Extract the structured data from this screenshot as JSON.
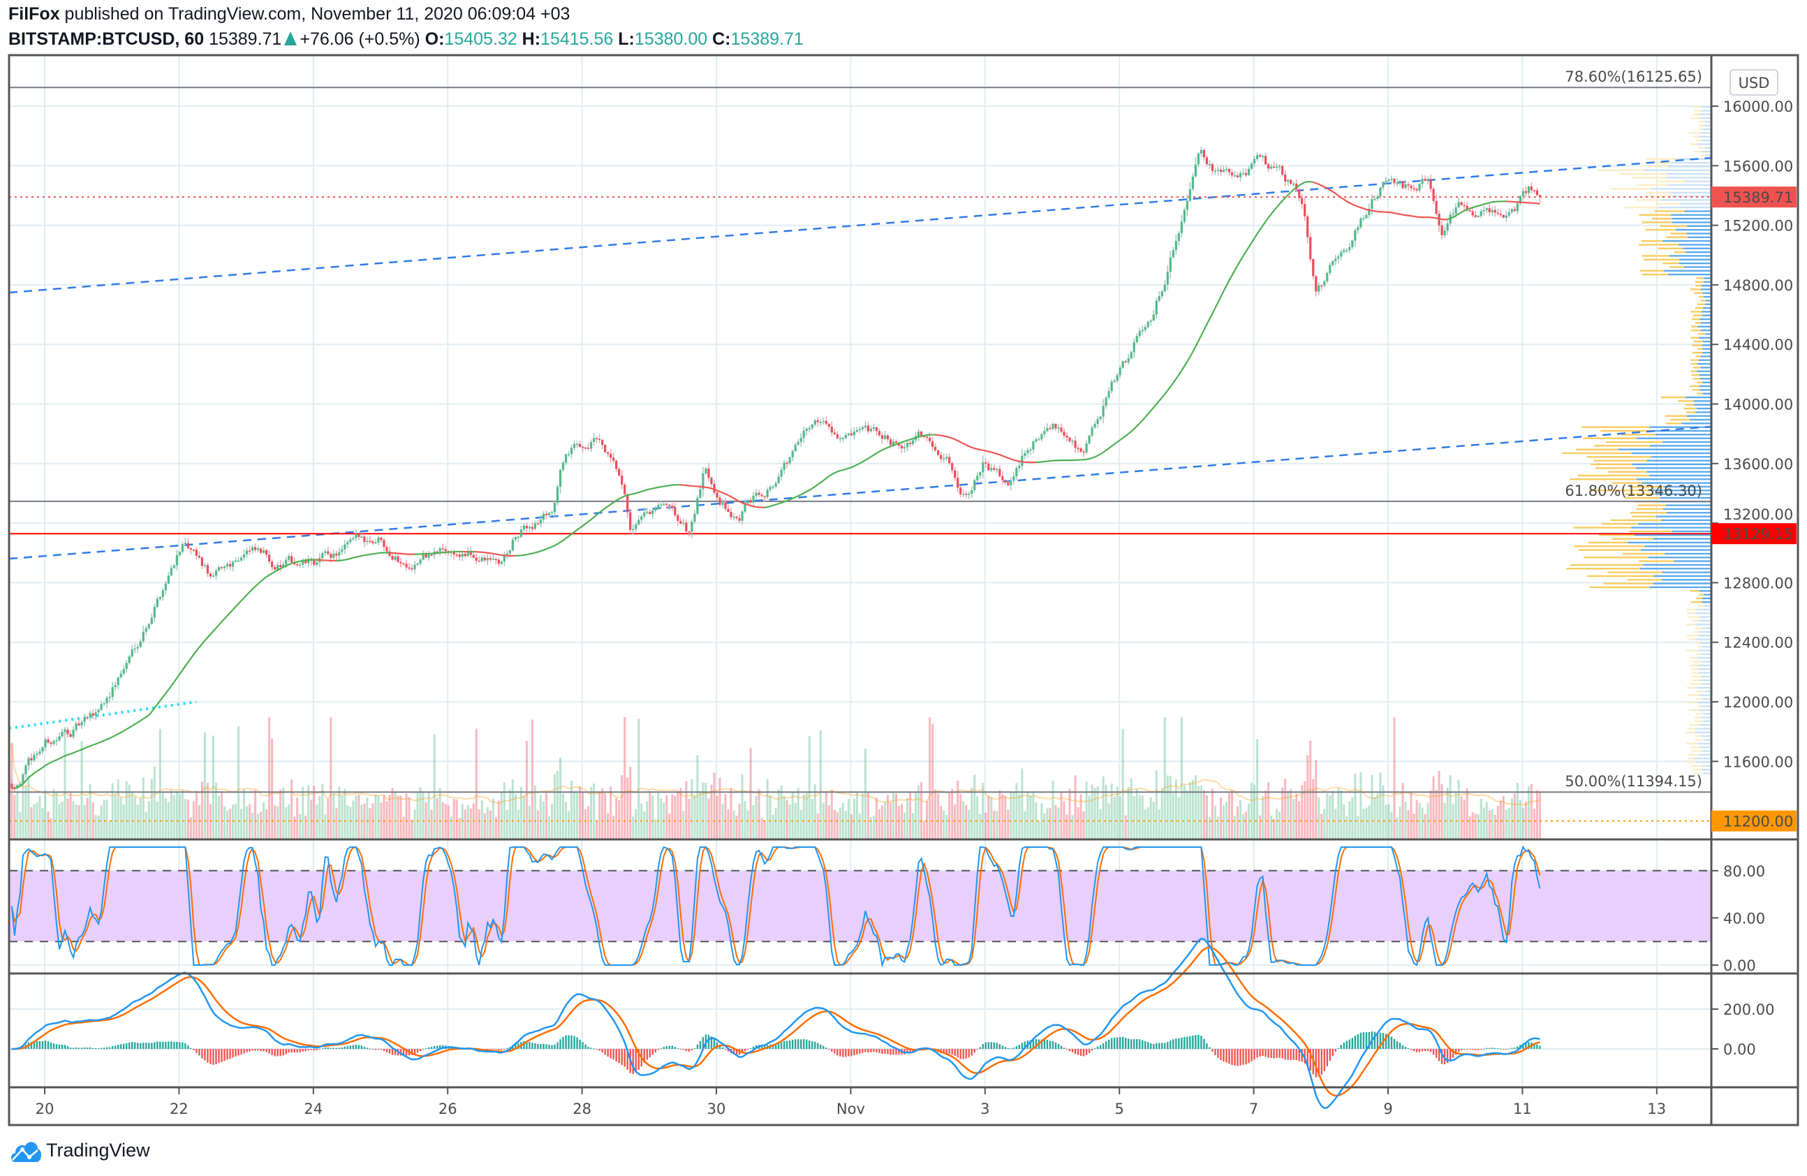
{
  "header": {
    "author": "FilFox",
    "published": " published on TradingView.com, November 11, 2020 06:09:04 +03",
    "symbol": "BITSTAMP:BTCUSD, 60",
    "last": "15389.71",
    "change": "+76.06 (+0.5%)",
    "o_label": "O:",
    "o": "15405.32",
    "h_label": "H:",
    "h": "15415.56",
    "l_label": "L:",
    "l": "15380.00",
    "c_label": "C:",
    "c": "15389.71"
  },
  "currency": "USD",
  "logo_text": "TradingView",
  "colors": {
    "up": "#53b987",
    "down": "#eb4d5c",
    "ma": "#4caf50",
    "accent": "#2196f3",
    "last_price": "#ef5350",
    "level_red": "#ff0000",
    "level_orange": "#ff9800"
  },
  "chart_data": {
    "type": "candlestick",
    "title": "BITSTAMP:BTCUSD, 60",
    "interval": "60",
    "x_ticks": [
      {
        "d": 0,
        "label": "20"
      },
      {
        "d": 2,
        "label": "22"
      },
      {
        "d": 4,
        "label": "24"
      },
      {
        "d": 6,
        "label": "26"
      },
      {
        "d": 8,
        "label": "28"
      },
      {
        "d": 10,
        "label": "30"
      },
      {
        "d": 12,
        "label": "Nov"
      },
      {
        "d": 14,
        "label": "3"
      },
      {
        "d": 16,
        "label": "5"
      },
      {
        "d": 18,
        "label": "7"
      },
      {
        "d": 20,
        "label": "9"
      },
      {
        "d": 22,
        "label": "11"
      },
      {
        "d": 24,
        "label": "13"
      }
    ],
    "x_unit": "days since Oct 20, 2020",
    "y_range": [
      11060,
      16320
    ],
    "y_ticks": [
      "16000.00",
      "15600.00",
      "15200.00",
      "14800.00",
      "14400.00",
      "14000.00",
      "13600.00",
      "13200.00",
      "12800.00",
      "12400.00",
      "12000.00",
      "11600.00"
    ],
    "price_path": [
      [
        -0.49,
        11450
      ],
      [
        0,
        11720
      ],
      [
        0.71,
        11875
      ],
      [
        1.22,
        12260
      ],
      [
        1.74,
        12765
      ],
      [
        2.03,
        13075
      ],
      [
        2.51,
        12800
      ],
      [
        2.99,
        13035
      ],
      [
        3.45,
        12920
      ],
      [
        3.98,
        12920
      ],
      [
        5.0,
        13115
      ],
      [
        5.34,
        12960
      ],
      [
        5.99,
        13010
      ],
      [
        6.8,
        12920
      ],
      [
        7.0,
        13090
      ],
      [
        7.57,
        13300
      ],
      [
        7.74,
        13650
      ],
      [
        8.22,
        13770
      ],
      [
        8.56,
        13460
      ],
      [
        8.73,
        13115
      ],
      [
        9.2,
        13270
      ],
      [
        9.59,
        13115
      ],
      [
        9.83,
        13540
      ],
      [
        10.31,
        13230
      ],
      [
        11.0,
        13580
      ],
      [
        11.51,
        13890
      ],
      [
        11.99,
        13770
      ],
      [
        12.54,
        13730
      ],
      [
        13.06,
        13770
      ],
      [
        13.4,
        13700
      ],
      [
        13.66,
        13420
      ],
      [
        14.0,
        13620
      ],
      [
        14.34,
        13420
      ],
      [
        14.69,
        13730
      ],
      [
        15.12,
        13850
      ],
      [
        15.46,
        13700
      ],
      [
        15.72,
        13930
      ],
      [
        16.06,
        14240
      ],
      [
        16.49,
        14620
      ],
      [
        16.83,
        15085
      ],
      [
        17.0,
        15400
      ],
      [
        17.17,
        15780
      ],
      [
        17.52,
        15550
      ],
      [
        17.86,
        15510
      ],
      [
        18.12,
        15630
      ],
      [
        18.46,
        15510
      ],
      [
        18.72,
        15360
      ],
      [
        18.92,
        14780
      ],
      [
        19.06,
        14860
      ],
      [
        19.4,
        15050
      ],
      [
        19.66,
        15280
      ],
      [
        20.0,
        15510
      ],
      [
        20.35,
        15435
      ],
      [
        20.61,
        15550
      ],
      [
        20.78,
        15125
      ],
      [
        21.03,
        15320
      ],
      [
        21.55,
        15320
      ],
      [
        21.8,
        15280
      ],
      [
        22.15,
        15435
      ],
      [
        22.28,
        15390
      ]
    ],
    "price_labels": [
      {
        "value": "15389.71",
        "price": 15389.71,
        "kind": "last"
      },
      {
        "value": "13129.15",
        "price": 13129.15,
        "kind": "level_red"
      },
      {
        "value": "11200.00",
        "price": 11200.0,
        "kind": "level_orange"
      }
    ],
    "fib_levels": [
      {
        "label": "78.60%(16125.65)",
        "price": 16125.65
      },
      {
        "label": "61.80%(13346.30)",
        "price": 13346.3
      },
      {
        "label": "50.00%(11394.15)",
        "price": 11394.15
      }
    ],
    "trendlines": [
      {
        "style": "dashed-blue",
        "from": [
          -0.53,
          14748
        ],
        "to": [
          24.81,
          15653
        ]
      },
      {
        "style": "dashed-blue",
        "from": [
          -0.53,
          12961
        ],
        "to": [
          24.81,
          13848
        ]
      },
      {
        "style": "dotted-cyan",
        "from": [
          -0.53,
          11822
        ],
        "to": [
          2.26,
          12000
        ]
      }
    ],
    "volume_profile": [
      [
        15650,
        16000,
        0.12,
        true
      ],
      [
        15300,
        15650,
        0.62,
        true
      ],
      [
        14850,
        15300,
        0.4,
        false
      ],
      [
        14050,
        14850,
        0.12,
        false
      ],
      [
        13850,
        14050,
        0.28,
        false
      ],
      [
        12750,
        13850,
        0.82,
        false
      ],
      [
        12650,
        12750,
        0.12,
        false
      ],
      [
        11500,
        12650,
        0.14,
        true
      ]
    ],
    "stoch_rsi": {
      "y_ticks": [
        "80.00",
        "40.00",
        "0.00"
      ],
      "upper_band": 80,
      "lower_band": 20,
      "range": [
        0,
        100
      ]
    },
    "macd": {
      "y_ticks": [
        "200.00",
        "0.00"
      ]
    }
  }
}
